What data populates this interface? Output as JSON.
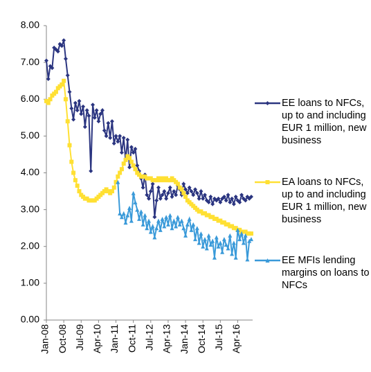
{
  "chart_data": {
    "type": "line",
    "categories": [
      "Jan-08",
      null,
      null,
      null,
      null,
      null,
      null,
      null,
      null,
      "Oct-08",
      null,
      null,
      null,
      null,
      null,
      null,
      null,
      null,
      "Jul-09",
      null,
      null,
      null,
      null,
      null,
      null,
      null,
      null,
      "Apr-10",
      null,
      null,
      null,
      null,
      null,
      null,
      null,
      null,
      "Jan-11",
      null,
      null,
      null,
      null,
      null,
      null,
      null,
      null,
      "Oct-11",
      null,
      null,
      null,
      null,
      null,
      null,
      null,
      null,
      "Jul-12",
      null,
      null,
      null,
      null,
      null,
      null,
      null,
      null,
      "Apr-13",
      null,
      null,
      null,
      null,
      null,
      null,
      null,
      null,
      "Jan-14",
      null,
      null,
      null,
      null,
      null,
      null,
      null,
      null,
      "Oct-14",
      null,
      null,
      null,
      null,
      null,
      null,
      null,
      null,
      "Jul-15",
      null,
      null,
      null,
      null,
      null,
      null,
      null,
      null,
      "Apr-16",
      null,
      null,
      null,
      null,
      null,
      null,
      null
    ],
    "series": [
      {
        "name": "EE loans to NFCs, up to and including EUR 1 million, new business",
        "color": "#2b3580",
        "marker": "diamond",
        "values": [
          7.05,
          6.55,
          6.9,
          6.85,
          7.4,
          7.35,
          7.3,
          7.5,
          7.45,
          7.6,
          7.1,
          6.65,
          6.2,
          5.75,
          5.45,
          5.9,
          5.7,
          5.95,
          5.6,
          5.8,
          5.25,
          5.7,
          5.55,
          4.05,
          5.85,
          5.5,
          5.7,
          5.4,
          5.6,
          5.7,
          5.15,
          5.0,
          5.35,
          4.95,
          5.4,
          4.8,
          5.0,
          4.85,
          5.0,
          4.55,
          4.95,
          4.35,
          4.9,
          4.15,
          4.7,
          4.55,
          4.65,
          4.2,
          4.05,
          3.85,
          3.6,
          3.95,
          3.4,
          3.3,
          3.5,
          3.7,
          2.8,
          3.25,
          3.6,
          3.3,
          3.4,
          3.5,
          3.3,
          3.45,
          3.6,
          3.35,
          3.5,
          3.4,
          3.65,
          3.55,
          3.4,
          3.7,
          3.55,
          3.45,
          3.6,
          3.5,
          3.4,
          3.55,
          3.45,
          3.3,
          3.5,
          3.3,
          3.4,
          3.25,
          3.2,
          3.35,
          3.15,
          3.3,
          3.25,
          3.3,
          3.2,
          3.3,
          3.35,
          3.25,
          3.4,
          3.2,
          3.3,
          3.15,
          3.35,
          3.25,
          3.2,
          3.4,
          3.3,
          3.25,
          3.35,
          3.3,
          3.35
        ]
      },
      {
        "name": "EA loans to NFCs, up to and including EUR 1 million, new business",
        "color": "#ffe033",
        "marker": "square",
        "values": [
          5.95,
          5.9,
          6.0,
          6.1,
          6.15,
          6.2,
          6.3,
          6.35,
          6.4,
          6.5,
          6.0,
          5.4,
          4.75,
          4.3,
          4.0,
          3.8,
          3.65,
          3.5,
          3.4,
          3.35,
          3.3,
          3.3,
          3.25,
          3.25,
          3.25,
          3.25,
          3.3,
          3.35,
          3.4,
          3.45,
          3.5,
          3.55,
          3.5,
          3.45,
          3.5,
          3.6,
          3.75,
          3.9,
          4.0,
          4.1,
          4.25,
          4.35,
          4.45,
          4.4,
          4.3,
          4.2,
          4.1,
          4.0,
          3.95,
          3.9,
          3.9,
          3.9,
          3.85,
          3.85,
          3.85,
          3.8,
          3.8,
          3.8,
          3.85,
          3.8,
          3.85,
          3.8,
          3.85,
          3.8,
          3.8,
          3.85,
          3.8,
          3.75,
          3.7,
          3.6,
          3.55,
          3.45,
          3.35,
          3.25,
          3.2,
          3.15,
          3.1,
          3.05,
          3.0,
          2.95,
          2.95,
          2.9,
          2.9,
          2.85,
          2.85,
          2.8,
          2.8,
          2.75,
          2.75,
          2.7,
          2.7,
          2.65,
          2.65,
          2.6,
          2.6,
          2.55,
          2.55,
          2.5,
          2.5,
          2.45,
          2.45,
          2.4,
          2.4,
          2.4,
          2.35,
          2.35,
          2.35
        ]
      },
      {
        "name": "EE MFIs lending margins on loans to NFCs",
        "color": "#3a9ad9",
        "marker": "triangle",
        "values": [
          null,
          null,
          null,
          null,
          null,
          null,
          null,
          null,
          null,
          null,
          null,
          null,
          null,
          null,
          null,
          null,
          null,
          null,
          null,
          null,
          null,
          null,
          null,
          null,
          null,
          null,
          null,
          null,
          null,
          null,
          null,
          null,
          null,
          null,
          null,
          null,
          null,
          3.75,
          2.9,
          2.8,
          2.9,
          2.65,
          2.85,
          3.05,
          2.7,
          3.45,
          3.2,
          3.0,
          2.75,
          2.95,
          2.6,
          2.85,
          2.5,
          2.7,
          2.4,
          2.55,
          2.25,
          2.5,
          2.7,
          2.45,
          2.75,
          2.55,
          2.8,
          2.6,
          2.85,
          2.5,
          2.7,
          2.55,
          2.8,
          2.6,
          2.7,
          2.5,
          2.3,
          2.6,
          2.75,
          2.45,
          2.6,
          2.2,
          2.5,
          2.1,
          2.35,
          2.0,
          2.2,
          1.95,
          2.3,
          2.05,
          2.15,
          1.7,
          2.25,
          2.0,
          2.1,
          1.85,
          2.2,
          2.05,
          1.95,
          2.3,
          1.8,
          2.1,
          1.7,
          2.45,
          2.2,
          2.35,
          2.1,
          2.3,
          1.65,
          2.15,
          2.2
        ]
      }
    ],
    "ylim": [
      0,
      8
    ],
    "yticks": [
      {
        "value": 0,
        "label": "0.00"
      },
      {
        "value": 1,
        "label": "1.00"
      },
      {
        "value": 2,
        "label": "2.00"
      },
      {
        "value": 3,
        "label": "3.00"
      },
      {
        "value": 4,
        "label": "4.00"
      },
      {
        "value": 5,
        "label": "5.00"
      },
      {
        "value": 6,
        "label": "6.00"
      },
      {
        "value": 7,
        "label": "7.00"
      },
      {
        "value": 8,
        "label": "8.00"
      }
    ],
    "grid": false
  }
}
